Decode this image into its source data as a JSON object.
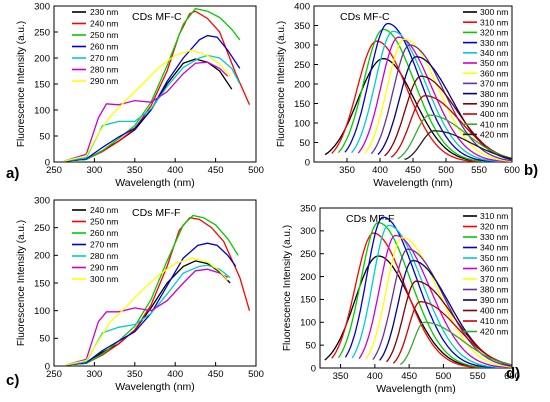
{
  "chart_data": [
    {
      "type": "line",
      "panel_label": "a)",
      "annotation": "CDs MF-C",
      "xlabel": "Wavelength (nm)",
      "ylabel": "Fluorescence Intensity (a.u.)",
      "xlim": [
        250,
        500
      ],
      "ylim": [
        0,
        300
      ],
      "xticks": [
        250,
        300,
        350,
        400,
        450,
        500
      ],
      "yticks": [
        0,
        50,
        100,
        150,
        200,
        250,
        300
      ],
      "legend": "top-left",
      "series": [
        {
          "name": "230 nm",
          "color": "#000000",
          "points": [
            [
              263,
              2
            ],
            [
              290,
              5
            ],
            [
              310,
              22
            ],
            [
              330,
              40
            ],
            [
              350,
              62
            ],
            [
              370,
              100
            ],
            [
              390,
              150
            ],
            [
              410,
              190
            ],
            [
              425,
              198
            ],
            [
              440,
              192
            ],
            [
              455,
              175
            ],
            [
              470,
              140
            ]
          ]
        },
        {
          "name": "240 nm",
          "color": "#ff0000",
          "points": [
            [
              263,
              2
            ],
            [
              290,
              5
            ],
            [
              310,
              20
            ],
            [
              330,
              40
            ],
            [
              350,
              64
            ],
            [
              370,
              108
            ],
            [
              390,
              175
            ],
            [
              405,
              245
            ],
            [
              418,
              285
            ],
            [
              425,
              290
            ],
            [
              440,
              276
            ],
            [
              455,
              250
            ],
            [
              475,
              170
            ],
            [
              492,
              110
            ]
          ]
        },
        {
          "name": "250 nm",
          "color": "#00cc00",
          "points": [
            [
              263,
              2
            ],
            [
              290,
              5
            ],
            [
              310,
              22
            ],
            [
              330,
              45
            ],
            [
              350,
              70
            ],
            [
              370,
              115
            ],
            [
              390,
              185
            ],
            [
              410,
              265
            ],
            [
              425,
              295
            ],
            [
              440,
              290
            ],
            [
              455,
              278
            ],
            [
              470,
              255
            ],
            [
              480,
              235
            ]
          ]
        },
        {
          "name": "260 nm",
          "color": "#0000cc",
          "points": [
            [
              263,
              2
            ],
            [
              290,
              6
            ],
            [
              310,
              28
            ],
            [
              330,
              48
            ],
            [
              350,
              65
            ],
            [
              370,
              100
            ],
            [
              390,
              155
            ],
            [
              410,
              200
            ],
            [
              430,
              235
            ],
            [
              440,
              243
            ],
            [
              452,
              240
            ],
            [
              465,
              215
            ],
            [
              480,
              180
            ]
          ]
        },
        {
          "name": "270 nm",
          "color": "#00cccc",
          "points": [
            [
              263,
              2
            ],
            [
              290,
              8
            ],
            [
              310,
              70
            ],
            [
              330,
              78
            ],
            [
              350,
              78
            ],
            [
              370,
              102
            ],
            [
              390,
              145
            ],
            [
              410,
              182
            ],
            [
              430,
              200
            ],
            [
              440,
              205
            ],
            [
              455,
              200
            ],
            [
              470,
              180
            ],
            [
              480,
              150
            ]
          ]
        },
        {
          "name": "280 nm",
          "color": "#cc00cc",
          "points": [
            [
              263,
              2
            ],
            [
              290,
              15
            ],
            [
              305,
              85
            ],
            [
              315,
              112
            ],
            [
              330,
              110
            ],
            [
              350,
              118
            ],
            [
              370,
              115
            ],
            [
              390,
              135
            ],
            [
              410,
              170
            ],
            [
              425,
              190
            ],
            [
              440,
              192
            ],
            [
              455,
              180
            ],
            [
              465,
              165
            ]
          ]
        },
        {
          "name": "290 nm",
          "color": "#ffff00",
          "points": [
            [
              263,
              2
            ],
            [
              290,
              12
            ],
            [
              305,
              55
            ],
            [
              320,
              88
            ],
            [
              340,
              120
            ],
            [
              360,
              150
            ],
            [
              380,
              182
            ],
            [
              400,
              205
            ],
            [
              420,
              215
            ],
            [
              440,
              205
            ],
            [
              455,
              188
            ],
            [
              468,
              165
            ]
          ]
        }
      ]
    },
    {
      "type": "line",
      "panel_label": "b)",
      "annotation": "CDs MF-C",
      "xlabel": "Wavelength (nm)",
      "ylabel": "Fluorescence Intensity (a.u.)",
      "xlim": [
        300,
        600
      ],
      "ylim": [
        0,
        400
      ],
      "xticks": [
        350,
        400,
        450,
        500,
        550,
        600
      ],
      "yticks": [
        0,
        50,
        100,
        150,
        200,
        250,
        300,
        350,
        400
      ],
      "legend": "right",
      "series": [
        {
          "name": "300 nm",
          "color": "#000000",
          "peak_x": 405,
          "peak_y": 265,
          "start_x": 317
        },
        {
          "name": "310 nm",
          "color": "#ff0000",
          "peak_x": 395,
          "peak_y": 310,
          "start_x": 327
        },
        {
          "name": "320 nm",
          "color": "#00cc00",
          "peak_x": 405,
          "peak_y": 340,
          "start_x": 337
        },
        {
          "name": "330 nm",
          "color": "#0000cc",
          "peak_x": 412,
          "peak_y": 355,
          "start_x": 347
        },
        {
          "name": "340 nm",
          "color": "#00cccc",
          "peak_x": 420,
          "peak_y": 335,
          "start_x": 357
        },
        {
          "name": "350 nm",
          "color": "#cc00cc",
          "peak_x": 428,
          "peak_y": 320,
          "start_x": 367
        },
        {
          "name": "360 nm",
          "color": "#ffff00",
          "peak_x": 437,
          "peak_y": 315,
          "start_x": 377
        },
        {
          "name": "370 nm",
          "color": "#663399",
          "peak_x": 445,
          "peak_y": 300,
          "start_x": 387
        },
        {
          "name": "380 nm",
          "color": "#000080",
          "peak_x": 455,
          "peak_y": 270,
          "start_x": 397
        },
        {
          "name": "390 nm",
          "color": "#800000",
          "peak_x": 462,
          "peak_y": 220,
          "start_x": 407
        },
        {
          "name": "400 nm",
          "color": "#cc0000",
          "peak_x": 468,
          "peak_y": 170,
          "start_x": 417
        },
        {
          "name": "410 nm",
          "color": "#33aa33",
          "peak_x": 475,
          "peak_y": 120,
          "start_x": 427
        },
        {
          "name": "420 nm",
          "color": "#222222",
          "peak_x": 482,
          "peak_y": 80,
          "start_x": 437
        }
      ]
    },
    {
      "type": "line",
      "panel_label": "c)",
      "annotation": "CDs MF-F",
      "xlabel": "Wavelength (nm)",
      "ylabel": "Fluorescence Intensity (a.u.)",
      "xlim": [
        250,
        500
      ],
      "ylim": [
        0,
        300
      ],
      "xticks": [
        250,
        300,
        350,
        400,
        450,
        500
      ],
      "yticks": [
        0,
        50,
        100,
        150,
        200,
        250,
        300
      ],
      "legend": "top-left",
      "series": [
        {
          "name": "240 nm",
          "color": "#000000",
          "points": [
            [
              265,
              2
            ],
            [
              290,
              5
            ],
            [
              310,
              25
            ],
            [
              330,
              40
            ],
            [
              350,
              65
            ],
            [
              370,
              105
            ],
            [
              390,
              150
            ],
            [
              410,
              180
            ],
            [
              425,
              190
            ],
            [
              440,
              185
            ],
            [
              455,
              170
            ],
            [
              468,
              150
            ]
          ]
        },
        {
          "name": "250 nm",
          "color": "#ff0000",
          "points": [
            [
              265,
              2
            ],
            [
              290,
              5
            ],
            [
              310,
              20
            ],
            [
              330,
              40
            ],
            [
              350,
              65
            ],
            [
              370,
              110
            ],
            [
              390,
              180
            ],
            [
              405,
              245
            ],
            [
              418,
              268
            ],
            [
              430,
              265
            ],
            [
              445,
              250
            ],
            [
              460,
              225
            ],
            [
              480,
              160
            ],
            [
              492,
              100
            ]
          ]
        },
        {
          "name": "260 nm",
          "color": "#00cc00",
          "points": [
            [
              265,
              2
            ],
            [
              290,
              5
            ],
            [
              310,
              22
            ],
            [
              330,
              45
            ],
            [
              350,
              72
            ],
            [
              370,
              120
            ],
            [
              390,
              190
            ],
            [
              410,
              255
            ],
            [
              422,
              272
            ],
            [
              435,
              268
            ],
            [
              450,
              255
            ],
            [
              465,
              230
            ],
            [
              478,
              200
            ]
          ]
        },
        {
          "name": "270 nm",
          "color": "#0000cc",
          "points": [
            [
              265,
              2
            ],
            [
              290,
              6
            ],
            [
              310,
              28
            ],
            [
              330,
              45
            ],
            [
              350,
              62
            ],
            [
              370,
              95
            ],
            [
              390,
              145
            ],
            [
              410,
              195
            ],
            [
              428,
              218
            ],
            [
              440,
              222
            ],
            [
              452,
              218
            ],
            [
              465,
              200
            ],
            [
              475,
              180
            ]
          ]
        },
        {
          "name": "280 nm",
          "color": "#00cccc",
          "points": [
            [
              265,
              2
            ],
            [
              290,
              8
            ],
            [
              310,
              60
            ],
            [
              330,
              70
            ],
            [
              350,
              75
            ],
            [
              370,
              95
            ],
            [
              390,
              130
            ],
            [
              410,
              168
            ],
            [
              430,
              180
            ],
            [
              440,
              182
            ],
            [
              455,
              175
            ],
            [
              468,
              160
            ]
          ]
        },
        {
          "name": "290 nm",
          "color": "#cc00cc",
          "points": [
            [
              265,
              2
            ],
            [
              290,
              12
            ],
            [
              305,
              80
            ],
            [
              315,
              98
            ],
            [
              330,
              98
            ],
            [
              350,
              105
            ],
            [
              370,
              100
            ],
            [
              390,
              118
            ],
            [
              410,
              150
            ],
            [
              425,
              172
            ],
            [
              440,
              175
            ],
            [
              455,
              168
            ],
            [
              465,
              160
            ]
          ]
        },
        {
          "name": "300 nm",
          "color": "#ffff00",
          "points": [
            [
              265,
              2
            ],
            [
              290,
              10
            ],
            [
              305,
              45
            ],
            [
              320,
              80
            ],
            [
              340,
              108
            ],
            [
              360,
              138
            ],
            [
              380,
              165
            ],
            [
              400,
              185
            ],
            [
              420,
              195
            ],
            [
              440,
              188
            ],
            [
              455,
              172
            ],
            [
              465,
              155
            ]
          ]
        }
      ]
    },
    {
      "type": "line",
      "panel_label": "d)",
      "annotation": "CDs MF-F",
      "xlabel": "Wavelength (nm)",
      "ylabel": "Fluorescence Intensity (a.u.)",
      "xlim": [
        320,
        600
      ],
      "ylim": [
        0,
        350
      ],
      "xticks": [
        350,
        400,
        450,
        500,
        550,
        600
      ],
      "yticks": [
        0,
        50,
        100,
        150,
        200,
        250,
        300,
        350
      ],
      "legend": "right",
      "series": [
        {
          "name": "310 nm",
          "color": "#000000",
          "peak_x": 405,
          "peak_y": 245,
          "start_x": 327
        },
        {
          "name": "320 nm",
          "color": "#ff0000",
          "peak_x": 398,
          "peak_y": 295,
          "start_x": 337
        },
        {
          "name": "330 nm",
          "color": "#00cc00",
          "peak_x": 405,
          "peak_y": 318,
          "start_x": 347
        },
        {
          "name": "340 nm",
          "color": "#0000cc",
          "peak_x": 412,
          "peak_y": 330,
          "start_x": 357
        },
        {
          "name": "350 nm",
          "color": "#00cccc",
          "peak_x": 420,
          "peak_y": 312,
          "start_x": 367
        },
        {
          "name": "360 nm",
          "color": "#cc00cc",
          "peak_x": 430,
          "peak_y": 290,
          "start_x": 377
        },
        {
          "name": "370 nm",
          "color": "#ffff00",
          "peak_x": 440,
          "peak_y": 285,
          "start_x": 387
        },
        {
          "name": "380 nm",
          "color": "#663399",
          "peak_x": 448,
          "peak_y": 260,
          "start_x": 397
        },
        {
          "name": "390 nm",
          "color": "#000080",
          "peak_x": 455,
          "peak_y": 235,
          "start_x": 407
        },
        {
          "name": "400 nm",
          "color": "#800000",
          "peak_x": 460,
          "peak_y": 190,
          "start_x": 417
        },
        {
          "name": "410 nm",
          "color": "#cc0000",
          "peak_x": 466,
          "peak_y": 145,
          "start_x": 427
        },
        {
          "name": "420 nm",
          "color": "#33aa33",
          "peak_x": 472,
          "peak_y": 100,
          "start_x": 437
        }
      ]
    }
  ]
}
